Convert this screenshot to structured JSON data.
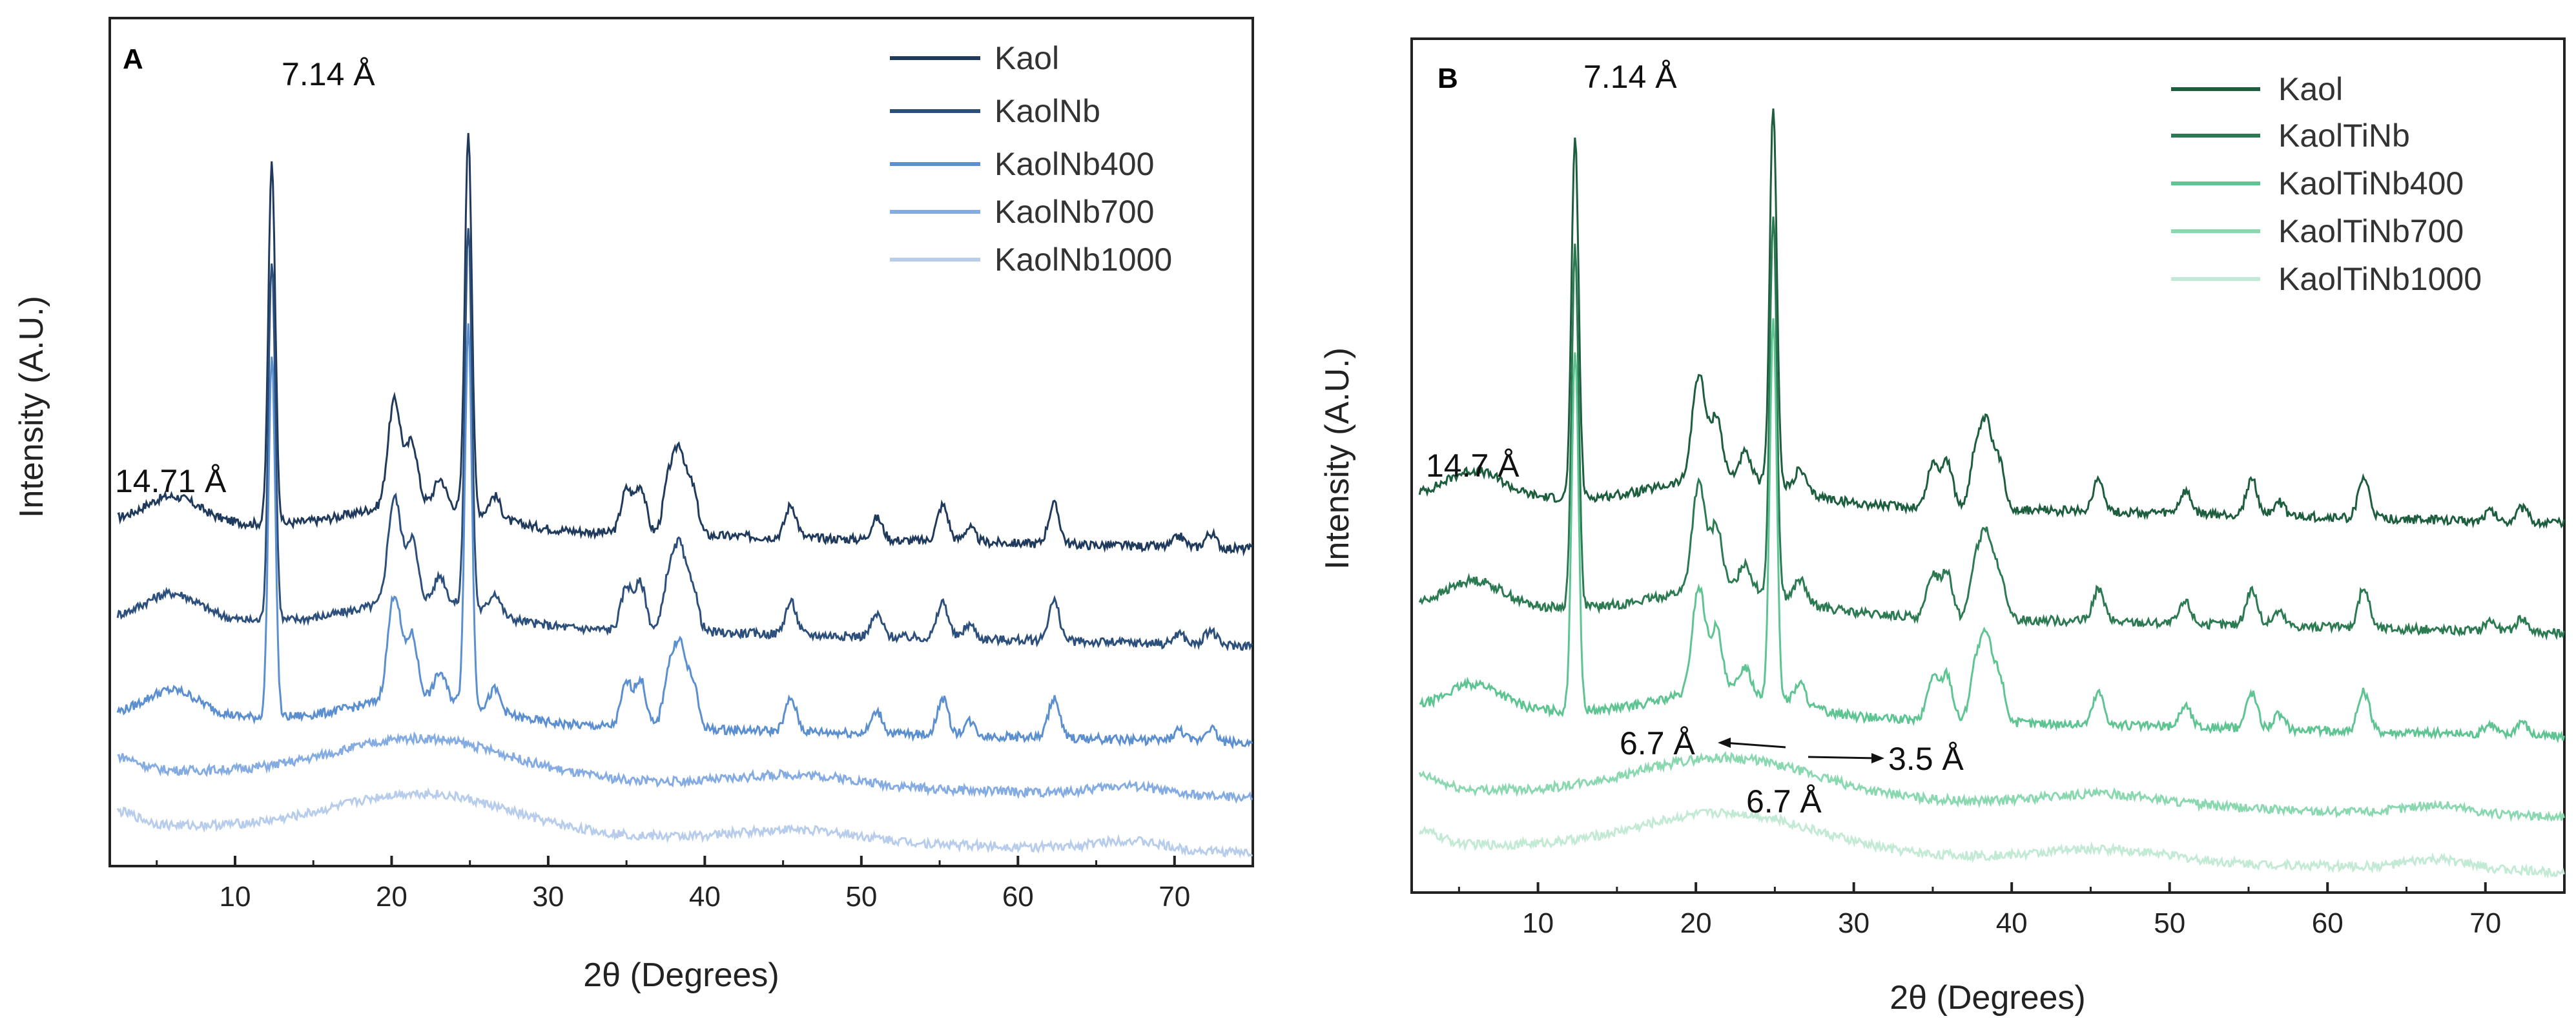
{
  "chart_data": [
    {
      "panel": "A",
      "type": "line",
      "xlabel": "2θ (Degrees)",
      "ylabel": "Intensity (A.U.)",
      "xlim": [
        2,
        75
      ],
      "x_ticks": [
        10,
        20,
        30,
        40,
        50,
        60,
        70
      ],
      "x_tick_labels": [
        "10",
        "20",
        "30",
        "40",
        "50",
        "60",
        "70"
      ],
      "legend_position": "top-right",
      "series": [
        {
          "name": "Kaol",
          "color": "#1f3a5c",
          "kind": "crystalline",
          "offset": 4
        },
        {
          "name": "KaolNb",
          "color": "#2c4f7c",
          "kind": "crystalline",
          "offset": 3
        },
        {
          "name": "KaolNb400",
          "color": "#5b8fd0",
          "kind": "crystalline",
          "offset": 2
        },
        {
          "name": "KaolNb700",
          "color": "#85ace2",
          "kind": "amorphous",
          "offset": 1
        },
        {
          "name": "KaolNb1000",
          "color": "#b7cdeb",
          "kind": "amorphous",
          "offset": 0
        }
      ],
      "annotations": [
        {
          "text": "7.14 Å",
          "x": 12.4
        },
        {
          "text": "14.71 Å",
          "x": 6.0
        }
      ]
    },
    {
      "panel": "B",
      "type": "line",
      "xlabel": "2θ (Degrees)",
      "ylabel": "Intensity (A.U.)",
      "xlim": [
        2,
        75
      ],
      "x_ticks": [
        10,
        20,
        30,
        40,
        50,
        60,
        70
      ],
      "x_tick_labels": [
        "10",
        "20",
        "30",
        "40",
        "50",
        "60",
        "70"
      ],
      "legend_position": "top-right",
      "series": [
        {
          "name": "Kaol",
          "color": "#1c5e3e",
          "kind": "crystalline",
          "offset": 4
        },
        {
          "name": "KaolTiNb",
          "color": "#2b7a52",
          "kind": "crystalline",
          "offset": 3
        },
        {
          "name": "KaolTiNb400",
          "color": "#5ec592",
          "kind": "crystalline",
          "offset": 2
        },
        {
          "name": "KaolTiNb700",
          "color": "#8ad8b0",
          "kind": "amorphous",
          "offset": 1
        },
        {
          "name": "KaolTiNb1000",
          "color": "#c3ead4",
          "kind": "amorphous",
          "offset": 0
        }
      ],
      "annotations": [
        {
          "text": "7.14 Å",
          "x": 12.3
        },
        {
          "text": "14.7 Å",
          "x": 6.0
        },
        {
          "text": "6.7 Å",
          "x": 12.3
        },
        {
          "text": "3.5 Å",
          "x": 25.0
        },
        {
          "text": "6.7 Å",
          "x": 12.3
        }
      ]
    }
  ]
}
